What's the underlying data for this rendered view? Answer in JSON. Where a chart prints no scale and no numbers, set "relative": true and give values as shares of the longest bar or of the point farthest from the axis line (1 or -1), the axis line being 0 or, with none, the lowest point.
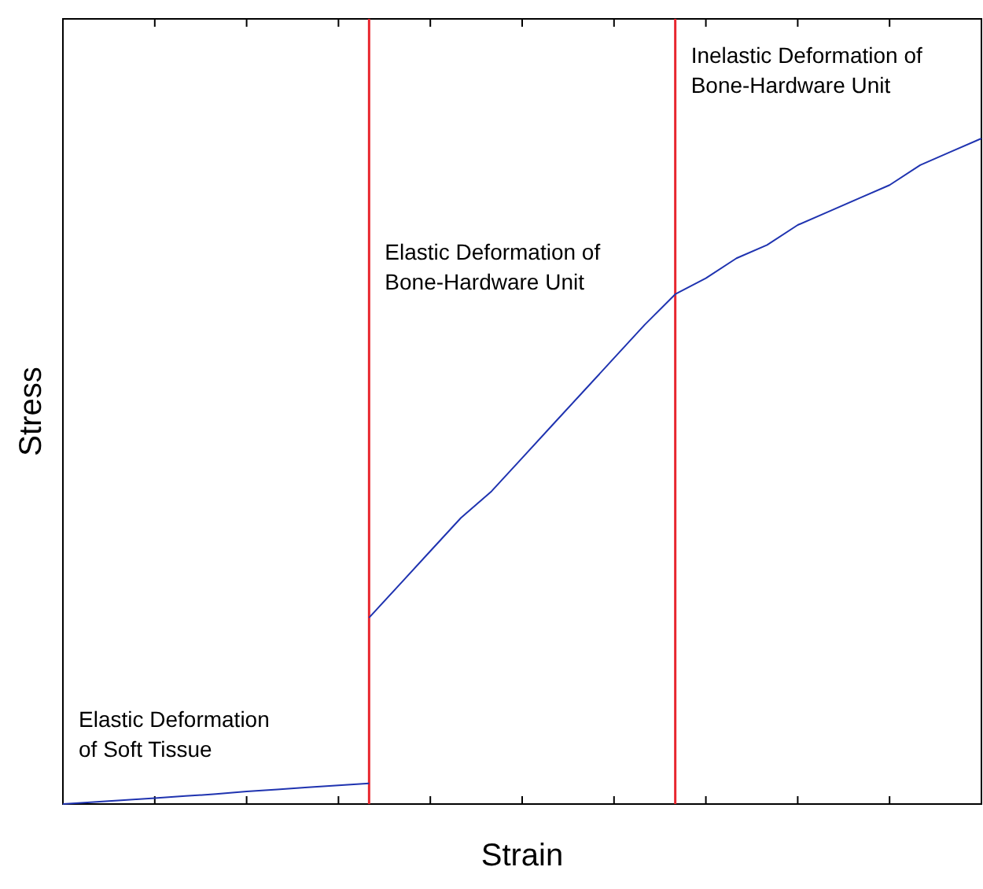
{
  "chart_data": {
    "type": "line",
    "relative": true,
    "xlabel": "Strain",
    "ylabel": "Stress",
    "grid": false,
    "marker": "none",
    "line_style": "solid",
    "categories": [
      null,
      null,
      null,
      null,
      null,
      null,
      null,
      null,
      null,
      null,
      null,
      null,
      null,
      null,
      null,
      null,
      null,
      null,
      null,
      null,
      null,
      null,
      null,
      null,
      null,
      null,
      null,
      null,
      null,
      null,
      null
    ],
    "series": [
      {
        "color": "#1f33b0",
        "values": [
          0,
          0.003,
          0.006,
          0.009,
          0.012,
          0.015,
          0.019,
          0.022,
          0.025,
          0.028,
          0.031,
          null,
          null,
          null,
          null,
          null,
          null,
          null,
          null,
          null,
          null,
          null,
          null,
          null,
          null,
          null,
          null,
          null,
          null,
          null,
          null
        ]
      },
      {
        "color": "#1f33b0",
        "values": [
          null,
          null,
          null,
          null,
          null,
          null,
          null,
          null,
          null,
          null,
          0.28,
          0.33,
          0.38,
          0.43,
          0.47,
          0.52,
          0.57,
          0.62,
          0.67,
          0.72,
          0.766,
          0.79,
          0.82,
          0.84,
          0.87,
          0.89,
          0.91,
          0.93,
          0.96,
          0.98,
          1
        ]
      }
    ],
    "annotations": [
      "Elastic Deformation\nof Soft Tissue",
      "Elastic Deformation of\nBone-Hardware Unit",
      "Inelastic Deformation of\nBone-Hardware Unit"
    ]
  }
}
